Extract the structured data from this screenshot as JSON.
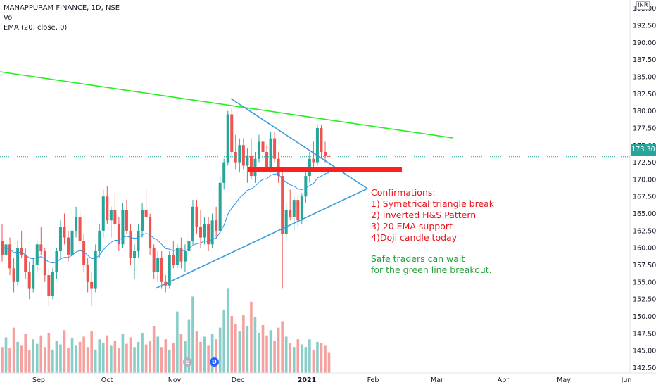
{
  "legend": {
    "symbol": "MANAPPURAM FINANCE, 1D, NSE",
    "vol": "Vol",
    "ema": "EMA (20, close, 0)"
  },
  "price_axis": {
    "currency": "INR",
    "last_price": "173.30",
    "ticks": [
      "195.00",
      "192.50",
      "190.00",
      "187.50",
      "185.00",
      "182.50",
      "180.00",
      "177.50",
      "175.00",
      "172.50",
      "170.00",
      "167.50",
      "165.00",
      "162.50",
      "160.00",
      "157.50",
      "155.00",
      "152.50",
      "150.00",
      "147.50",
      "145.00",
      "142.50"
    ]
  },
  "time_axis": {
    "ticks": [
      "Sep",
      "Oct",
      "Nov",
      "Dec",
      "2021",
      "Feb",
      "Mar",
      "Apr",
      "May",
      "Jun"
    ]
  },
  "events": {
    "earnings": "E",
    "dividend": "D"
  },
  "annotations": {
    "confirmations": [
      "Confirmations:",
      "1) Symetrical triangle break",
      "2) Inverted H&S Pattern",
      "3) 20 EMA support",
      "4)Doji candle today"
    ],
    "note": [
      "Safe traders can wait",
      "for the green line breakout."
    ]
  },
  "colors": {
    "up": "#26a69a",
    "down": "#ef5350",
    "ema": "#2196f3",
    "trendline_green": "#22ee22",
    "triangle": "#3a9bd8",
    "support_band": "#ff1f1f",
    "annotation_red": "#e8141c",
    "annotation_green": "#24a13a"
  },
  "chart_data": {
    "type": "candlestick",
    "title": "MANAPPURAM FINANCE, 1D, NSE",
    "ylim": [
      141.0,
      196.0
    ],
    "last_close": 173.3,
    "candles": [
      [
        161.0,
        163.5,
        158.0,
        159.0
      ],
      [
        159.0,
        162.0,
        157.5,
        160.5
      ],
      [
        160.5,
        161.5,
        156.0,
        157.0
      ],
      [
        157.0,
        158.5,
        153.5,
        155.0
      ],
      [
        155.0,
        161.0,
        154.5,
        160.0
      ],
      [
        160.0,
        162.5,
        158.5,
        159.0
      ],
      [
        159.0,
        160.0,
        155.5,
        156.5
      ],
      [
        156.5,
        158.0,
        152.5,
        154.0
      ],
      [
        154.0,
        158.5,
        153.5,
        157.5
      ],
      [
        157.5,
        161.0,
        156.5,
        160.5
      ],
      [
        160.5,
        163.0,
        159.0,
        159.5
      ],
      [
        159.5,
        160.0,
        155.0,
        156.0
      ],
      [
        156.0,
        157.0,
        151.5,
        153.0
      ],
      [
        153.0,
        157.0,
        152.5,
        156.5
      ],
      [
        156.5,
        160.0,
        155.5,
        159.5
      ],
      [
        159.5,
        164.0,
        158.5,
        163.0
      ],
      [
        163.0,
        165.0,
        160.5,
        161.5
      ],
      [
        161.5,
        162.5,
        158.0,
        159.0
      ],
      [
        159.0,
        163.5,
        158.5,
        162.5
      ],
      [
        162.5,
        166.0,
        161.5,
        164.5
      ],
      [
        164.5,
        165.5,
        160.5,
        161.0
      ],
      [
        161.0,
        162.0,
        156.5,
        157.5
      ],
      [
        157.5,
        158.5,
        153.5,
        155.0
      ],
      [
        155.0,
        156.5,
        151.5,
        154.0
      ],
      [
        154.0,
        160.5,
        153.5,
        159.5
      ],
      [
        159.5,
        163.5,
        158.5,
        162.5
      ],
      [
        162.5,
        168.5,
        161.5,
        167.5
      ],
      [
        167.5,
        169.0,
        163.5,
        164.0
      ],
      [
        164.0,
        166.0,
        161.5,
        165.5
      ],
      [
        165.5,
        168.0,
        163.0,
        163.5
      ],
      [
        163.5,
        164.5,
        159.5,
        160.5
      ],
      [
        160.5,
        166.5,
        160.0,
        165.5
      ],
      [
        165.5,
        167.0,
        162.0,
        162.5
      ],
      [
        162.5,
        163.5,
        157.5,
        158.5
      ],
      [
        158.5,
        160.5,
        155.5,
        159.5
      ],
      [
        159.5,
        163.5,
        158.5,
        162.5
      ],
      [
        162.5,
        166.5,
        161.5,
        165.5
      ],
      [
        165.5,
        168.5,
        164.0,
        164.5
      ],
      [
        164.5,
        165.0,
        159.0,
        160.0
      ],
      [
        160.0,
        160.5,
        155.5,
        156.5
      ],
      [
        156.5,
        159.5,
        155.0,
        158.5
      ],
      [
        158.5,
        159.5,
        154.0,
        155.0
      ],
      [
        155.0,
        156.0,
        153.5,
        154.5
      ],
      [
        154.5,
        159.5,
        154.0,
        159.0
      ],
      [
        159.0,
        161.0,
        157.0,
        157.5
      ],
      [
        157.5,
        160.5,
        157.0,
        160.0
      ],
      [
        160.0,
        161.5,
        157.0,
        158.0
      ],
      [
        158.0,
        160.5,
        156.5,
        159.5
      ],
      [
        159.5,
        162.5,
        159.0,
        161.0
      ],
      [
        161.0,
        167.0,
        160.5,
        166.0
      ],
      [
        166.0,
        167.0,
        162.0,
        163.0
      ],
      [
        163.0,
        165.5,
        160.0,
        161.5
      ],
      [
        161.5,
        164.5,
        160.5,
        163.5
      ],
      [
        163.5,
        164.5,
        159.5,
        160.5
      ],
      [
        160.5,
        165.0,
        160.0,
        164.0
      ],
      [
        164.0,
        166.0,
        161.5,
        162.5
      ],
      [
        162.5,
        170.5,
        162.0,
        169.5
      ],
      [
        169.5,
        173.0,
        168.5,
        172.5
      ],
      [
        172.5,
        180.0,
        172.0,
        179.5
      ],
      [
        179.5,
        180.5,
        173.0,
        174.0
      ],
      [
        174.0,
        176.5,
        171.5,
        172.5
      ],
      [
        172.5,
        176.0,
        171.0,
        175.0
      ],
      [
        175.0,
        176.0,
        171.5,
        172.0
      ],
      [
        172.0,
        174.5,
        169.5,
        173.5
      ],
      [
        173.5,
        176.0,
        170.0,
        170.5
      ],
      [
        170.5,
        174.0,
        169.5,
        173.0
      ],
      [
        173.0,
        176.5,
        172.5,
        175.5
      ],
      [
        175.5,
        177.5,
        173.5,
        174.0
      ],
      [
        174.0,
        175.0,
        171.0,
        171.5
      ],
      [
        171.5,
        177.0,
        171.0,
        176.0
      ],
      [
        176.0,
        177.0,
        172.5,
        173.0
      ],
      [
        173.0,
        174.0,
        169.5,
        170.5
      ],
      [
        170.5,
        171.5,
        154.0,
        162.0
      ],
      [
        162.0,
        166.5,
        161.0,
        165.5
      ],
      [
        165.5,
        168.5,
        164.0,
        164.5
      ],
      [
        164.5,
        167.5,
        162.5,
        167.0
      ],
      [
        167.0,
        167.5,
        163.0,
        164.0
      ],
      [
        164.0,
        168.0,
        163.5,
        167.5
      ],
      [
        167.5,
        171.0,
        166.5,
        170.5
      ],
      [
        170.5,
        174.0,
        169.5,
        173.0
      ],
      [
        173.0,
        175.5,
        171.5,
        172.5
      ],
      [
        172.5,
        178.0,
        172.0,
        177.5
      ],
      [
        177.5,
        178.0,
        173.0,
        174.0
      ],
      [
        174.0,
        175.5,
        172.5,
        173.5
      ],
      [
        173.5,
        176.0,
        172.0,
        173.3
      ]
    ],
    "ema20": [
      160.0,
      160.0,
      159.8,
      159.3,
      159.4,
      159.3,
      159.0,
      158.5,
      158.4,
      158.6,
      158.7,
      158.4,
      157.9,
      157.8,
      157.9,
      158.4,
      158.6,
      158.6,
      158.9,
      159.4,
      159.6,
      159.4,
      158.9,
      158.4,
      158.5,
      158.9,
      159.7,
      160.3,
      160.8,
      161.1,
      161.1,
      161.5,
      161.7,
      161.5,
      161.4,
      161.5,
      161.9,
      162.1,
      161.9,
      161.4,
      161.1,
      160.5,
      159.9,
      159.8,
      159.6,
      159.7,
      159.6,
      159.6,
      159.8,
      160.4,
      160.6,
      160.7,
      161.0,
      160.9,
      161.3,
      161.4,
      162.3,
      163.3,
      164.9,
      165.8,
      166.5,
      167.3,
      167.8,
      168.4,
      168.6,
      169.0,
      169.6,
      170.0,
      170.1,
      170.6,
      170.8,
      170.8,
      170.0,
      169.6,
      169.2,
      169.0,
      168.6,
      168.5,
      168.7,
      169.1,
      169.4,
      170.2,
      170.5,
      170.8,
      171.0
    ],
    "volume": [
      40,
      55,
      38,
      70,
      48,
      42,
      60,
      35,
      52,
      45,
      58,
      40,
      62,
      36,
      50,
      44,
      66,
      38,
      54,
      42,
      48,
      56,
      40,
      64,
      36,
      52,
      46,
      58,
      42,
      50,
      38,
      60,
      45,
      55,
      40,
      48,
      62,
      44,
      50,
      72,
      56,
      40,
      52,
      36,
      46,
      95,
      60,
      50,
      82,
      118,
      64,
      48,
      56,
      42,
      60,
      52,
      70,
      98,
      130,
      88,
      76,
      64,
      90,
      72,
      110,
      86,
      62,
      74,
      58,
      66,
      50,
      70,
      80,
      56,
      46,
      40,
      52,
      44,
      40,
      52,
      36,
      48,
      46,
      42,
      32
    ]
  }
}
